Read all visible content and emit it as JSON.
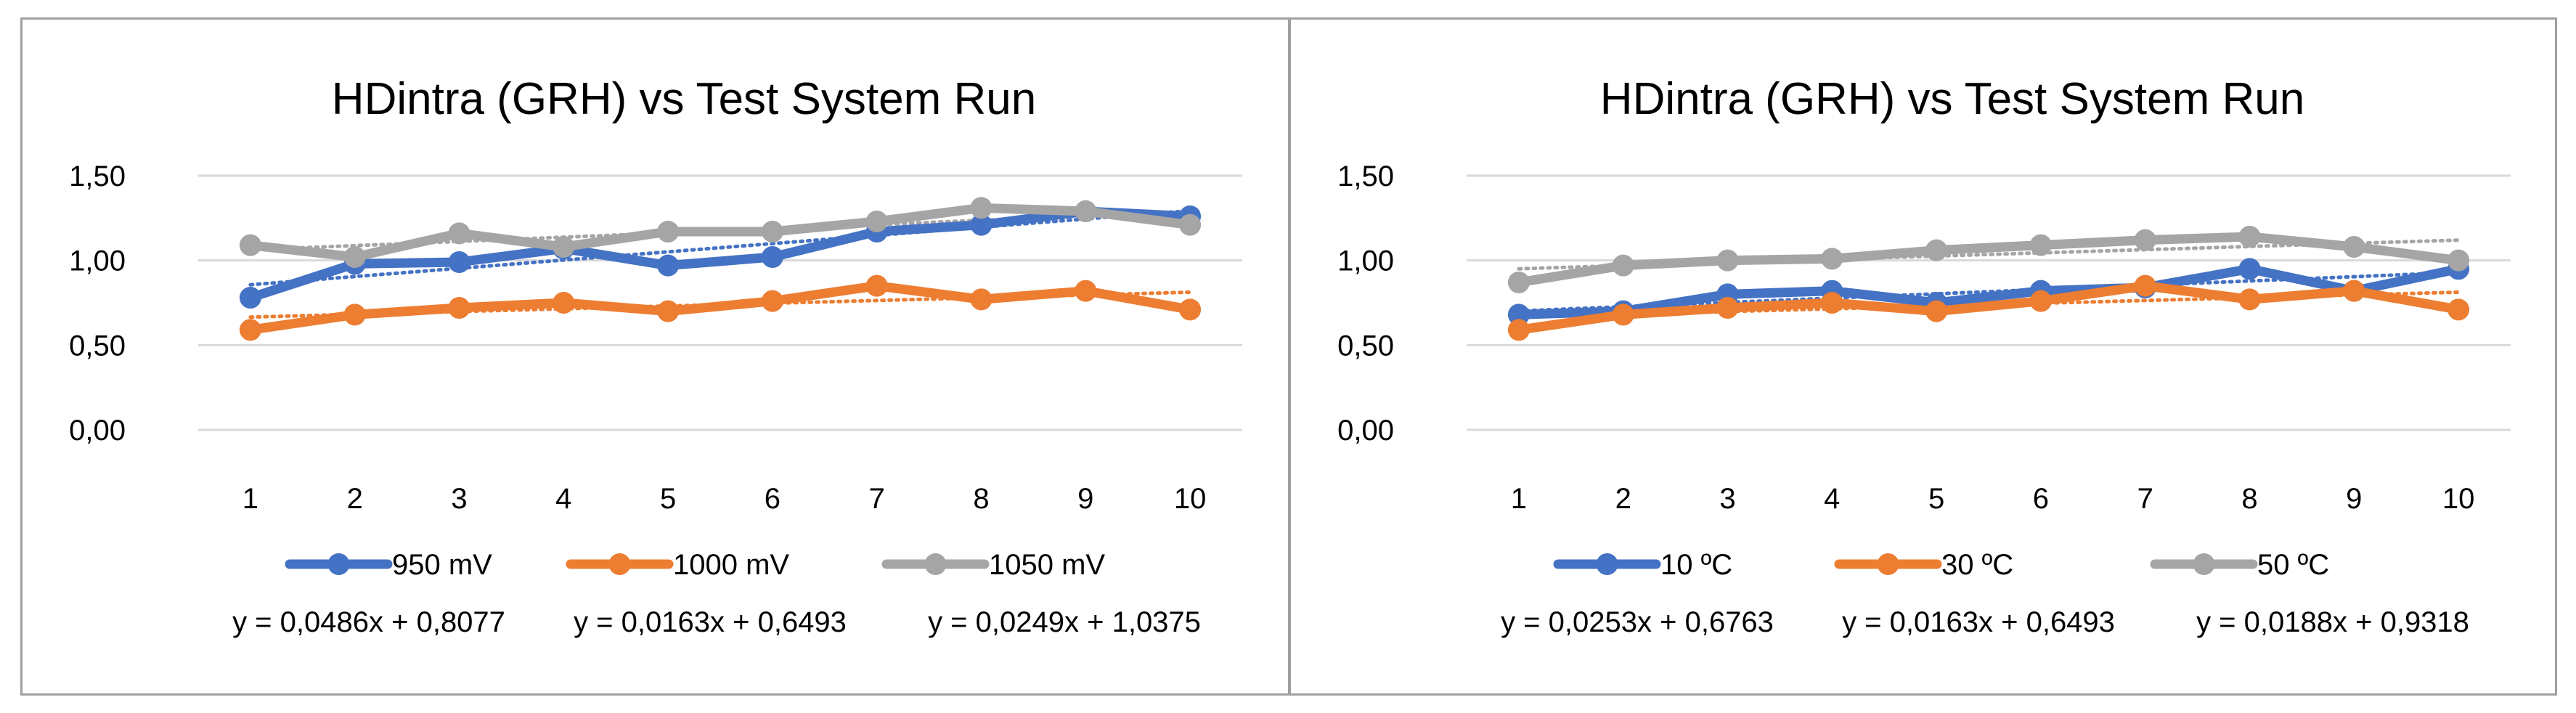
{
  "chart_data": [
    {
      "type": "line",
      "title": "HDintra (GRH) vs Test System Run",
      "xlabel": "",
      "ylabel": "",
      "categories": [
        "1",
        "2",
        "3",
        "4",
        "5",
        "6",
        "7",
        "8",
        "9",
        "10"
      ],
      "ylim": [
        0,
        1.5
      ],
      "yticks": [
        "0,00",
        "0,50",
        "1,00",
        "1,50"
      ],
      "grid": true,
      "legend": "bottom",
      "trendlines": true,
      "series": [
        {
          "name": "950 mV",
          "color": "#4472C4",
          "values": [
            0.78,
            0.98,
            0.99,
            1.07,
            0.97,
            1.02,
            1.17,
            1.21,
            1.29,
            1.26
          ],
          "slope": 0.0486,
          "intercept": 0.8077,
          "equation": "y = 0,0486x + 0,8077"
        },
        {
          "name": "1000 mV",
          "color": "#ED7D31",
          "values": [
            0.59,
            0.68,
            0.72,
            0.75,
            0.7,
            0.76,
            0.85,
            0.77,
            0.82,
            0.71
          ],
          "slope": 0.0163,
          "intercept": 0.6493,
          "equation": "y = 0,0163x + 0,6493"
        },
        {
          "name": "1050 mV",
          "color": "#A5A5A5",
          "values": [
            1.09,
            1.02,
            1.16,
            1.08,
            1.17,
            1.17,
            1.23,
            1.31,
            1.29,
            1.21
          ],
          "slope": 0.0249,
          "intercept": 1.0375,
          "equation": "y = 0,0249x + 1,0375"
        }
      ]
    },
    {
      "type": "line",
      "title": "HDintra (GRH) vs Test System Run",
      "xlabel": "",
      "ylabel": "",
      "categories": [
        "1",
        "2",
        "3",
        "4",
        "5",
        "6",
        "7",
        "8",
        "9",
        "10"
      ],
      "ylim": [
        0,
        1.5
      ],
      "yticks": [
        "0,00",
        "0,50",
        "1,00",
        "1,50"
      ],
      "grid": true,
      "legend": "bottom",
      "trendlines": true,
      "series": [
        {
          "name": "10 ºC",
          "color": "#4472C4",
          "values": [
            0.68,
            0.7,
            0.8,
            0.82,
            0.75,
            0.82,
            0.84,
            0.95,
            0.82,
            0.95
          ],
          "slope": 0.0253,
          "intercept": 0.6763,
          "equation": "y = 0,0253x + 0,6763"
        },
        {
          "name": "30 ºC",
          "color": "#ED7D31",
          "values": [
            0.59,
            0.68,
            0.72,
            0.75,
            0.7,
            0.76,
            0.85,
            0.77,
            0.82,
            0.71
          ],
          "slope": 0.0163,
          "intercept": 0.6493,
          "equation": "y = 0,0163x + 0,6493"
        },
        {
          "name": "50 ºC",
          "color": "#A5A5A5",
          "values": [
            0.87,
            0.97,
            1.0,
            1.01,
            1.06,
            1.09,
            1.12,
            1.14,
            1.08,
            1.0
          ],
          "slope": 0.0188,
          "intercept": 0.9318,
          "equation": "y = 0,0188x + 0,9318"
        }
      ]
    }
  ]
}
